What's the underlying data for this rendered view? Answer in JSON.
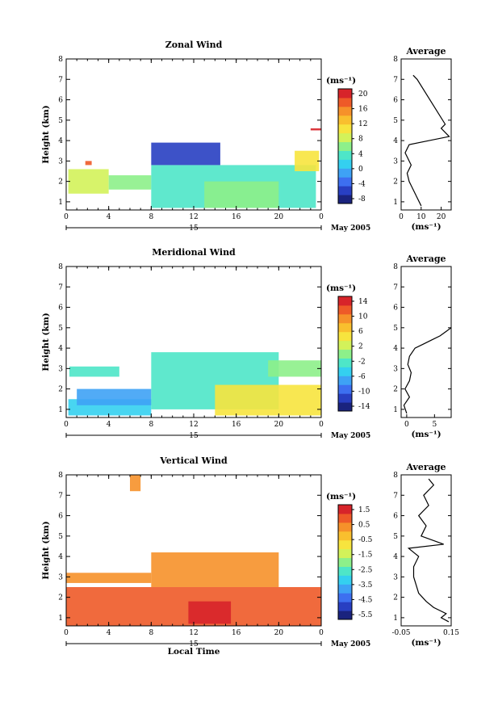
{
  "figure": {
    "xlabel_bottom": "Local Time",
    "date_label": "May 2005",
    "day_label": "15",
    "xticks": [
      "0",
      "4",
      "8",
      "12",
      "16",
      "20",
      "0"
    ],
    "yticks": [
      "1",
      "2",
      "3",
      "4",
      "5",
      "6",
      "7",
      "8"
    ]
  },
  "chart_data": [
    {
      "type": "heatmap",
      "title": "Zonal Wind",
      "xlabel": "",
      "ylabel": "Height (km)",
      "xlim": [
        0,
        24
      ],
      "ylim": [
        0.6,
        8.0
      ],
      "colorbar": {
        "unit": "(ms⁻¹)",
        "ticks": [
          "20",
          "16",
          "12",
          "8",
          "4",
          "0",
          "-4",
          "-8"
        ],
        "range": [
          -10,
          22
        ]
      },
      "regions": [
        {
          "x0": 0.2,
          "x1": 4.0,
          "y0": 1.4,
          "y1": 2.6,
          "value": 8
        },
        {
          "x0": 1.8,
          "x1": 2.4,
          "y0": 2.8,
          "y1": 3.0,
          "value": 18
        },
        {
          "x0": 4.0,
          "x1": 8.0,
          "y0": 1.6,
          "y1": 2.3,
          "value": 6
        },
        {
          "x0": 8.0,
          "x1": 23.5,
          "y0": 0.7,
          "y1": 2.8,
          "value": 3
        },
        {
          "x0": 8.0,
          "x1": 14.5,
          "y0": 2.8,
          "y1": 3.9,
          "value": -6
        },
        {
          "x0": 13.0,
          "x1": 20.0,
          "y0": 0.7,
          "y1": 2.0,
          "value": 5
        },
        {
          "x0": 21.5,
          "x1": 23.8,
          "y0": 2.5,
          "y1": 3.5,
          "value": 10
        },
        {
          "x0": 23.0,
          "x1": 24.0,
          "y0": 4.5,
          "y1": 4.6,
          "value": 22
        }
      ],
      "profile": {
        "title": "Average",
        "xlim": [
          0,
          25
        ],
        "xticks": [
          "0",
          "10",
          "20"
        ],
        "xlabel": "(ms⁻¹)",
        "y": [
          0.8,
          1.2,
          1.6,
          2.0,
          2.4,
          2.8,
          3.0,
          3.2,
          3.4,
          3.6,
          3.8,
          4.0,
          4.2,
          4.6,
          4.8,
          7.0,
          7.2
        ],
        "x": [
          10,
          8,
          6,
          4,
          3,
          5,
          4,
          3,
          2,
          3,
          4,
          14,
          24,
          20,
          22,
          8,
          6
        ]
      }
    },
    {
      "type": "heatmap",
      "title": "Meridional Wind",
      "xlabel": "",
      "ylabel": "Height (km)",
      "xlim": [
        0,
        24
      ],
      "ylim": [
        0.6,
        8.0
      ],
      "colorbar": {
        "unit": "(ms⁻¹)",
        "ticks": [
          "14",
          "10",
          "6",
          "2",
          "-2",
          "-6",
          "-10",
          "-14"
        ],
        "range": [
          -16,
          16
        ]
      },
      "regions": [
        {
          "x0": 0.2,
          "x1": 8.0,
          "y0": 0.7,
          "y1": 1.5,
          "value": -4
        },
        {
          "x0": 1.0,
          "x1": 8.0,
          "y0": 1.2,
          "y1": 2.0,
          "value": -8
        },
        {
          "x0": 0.3,
          "x1": 5.0,
          "y0": 2.6,
          "y1": 3.1,
          "value": -2
        },
        {
          "x0": 8.0,
          "x1": 20.0,
          "y0": 1.0,
          "y1": 3.8,
          "value": -3
        },
        {
          "x0": 14.0,
          "x1": 24.0,
          "y0": 0.7,
          "y1": 2.2,
          "value": 4
        },
        {
          "x0": 19.0,
          "x1": 24.0,
          "y0": 2.6,
          "y1": 3.4,
          "value": 0
        }
      ],
      "profile": {
        "title": "Average",
        "xlim": [
          -1,
          8
        ],
        "xticks": [
          "0",
          "5"
        ],
        "xlabel": "(ms⁻¹)",
        "y": [
          0.8,
          1.2,
          1.6,
          2.0,
          2.4,
          2.8,
          3.2,
          3.6,
          4.0,
          4.2,
          4.4,
          4.6,
          4.8,
          5.0
        ],
        "x": [
          0,
          -0.5,
          0.5,
          -0.3,
          0.5,
          0.8,
          0.2,
          0.5,
          1.5,
          3.0,
          4.5,
          6,
          7,
          8
        ]
      }
    },
    {
      "type": "heatmap",
      "title": "Vertical Wind",
      "xlabel": "Local Time",
      "ylabel": "Height (km)",
      "xlim": [
        0,
        24
      ],
      "ylim": [
        0.6,
        8.0
      ],
      "colorbar": {
        "unit": "(ms⁻¹)",
        "ticks": [
          "1.5",
          "0.5",
          "-0.5",
          "-1.5",
          "-2.5",
          "-3.5",
          "-4.5",
          "-5.5"
        ],
        "range": [
          -6,
          2
        ]
      },
      "regions": [
        {
          "x0": 0.0,
          "x1": 24.0,
          "y0": 0.6,
          "y1": 2.5,
          "value": 0.9
        },
        {
          "x0": 0.0,
          "x1": 8.0,
          "y0": 2.7,
          "y1": 3.2,
          "value": 0.5
        },
        {
          "x0": 8.0,
          "x1": 20.0,
          "y0": 2.5,
          "y1": 4.2,
          "value": 0.4
        },
        {
          "x0": 11.5,
          "x1": 15.5,
          "y0": 0.7,
          "y1": 1.8,
          "value": 1.8
        },
        {
          "x0": 6.0,
          "x1": 7.0,
          "y0": 7.2,
          "y1": 8.0,
          "value": 0.3
        }
      ],
      "profile": {
        "title": "Average",
        "xlim": [
          -0.05,
          0.15
        ],
        "xticks": [
          "-0.05",
          "0.15"
        ],
        "xlabel": "(ms⁻¹)",
        "y": [
          0.8,
          1.0,
          1.2,
          1.5,
          1.8,
          2.2,
          2.6,
          3.0,
          3.5,
          4.0,
          4.4,
          4.6,
          5.0,
          5.5,
          6.0,
          6.5,
          7.0,
          7.5,
          7.8
        ],
        "x": [
          0.14,
          0.11,
          0.13,
          0.08,
          0.05,
          0.02,
          0.01,
          0.0,
          0.0,
          0.02,
          -0.02,
          0.12,
          0.03,
          0.05,
          0.02,
          0.06,
          0.04,
          0.08,
          0.06
        ]
      }
    }
  ]
}
